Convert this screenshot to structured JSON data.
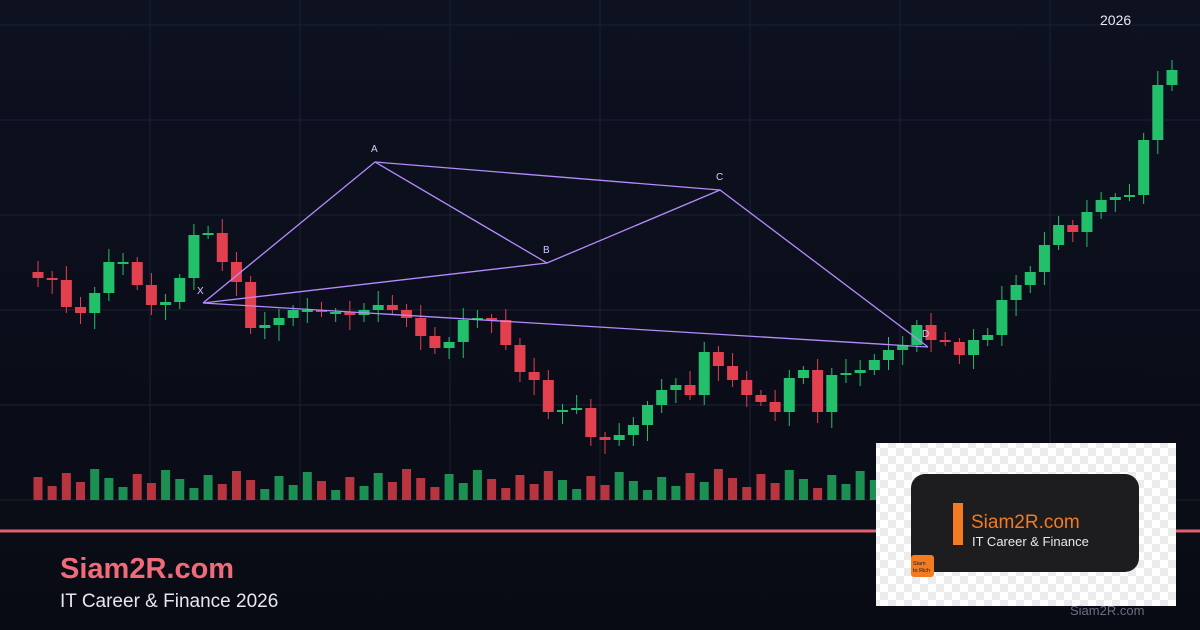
{
  "header": {
    "year": "2026"
  },
  "pattern": {
    "labels": [
      "X",
      "A",
      "B",
      "C",
      "D"
    ]
  },
  "brand": {
    "title": "Siam2R.com",
    "subtitle": "IT Career & Finance 2026"
  },
  "badge": {
    "title": "Siam2R.com",
    "subtitle": "IT Career & Finance",
    "icon": [
      "Siam",
      "to Rich"
    ]
  },
  "watermark": "Siam2R.com"
}
